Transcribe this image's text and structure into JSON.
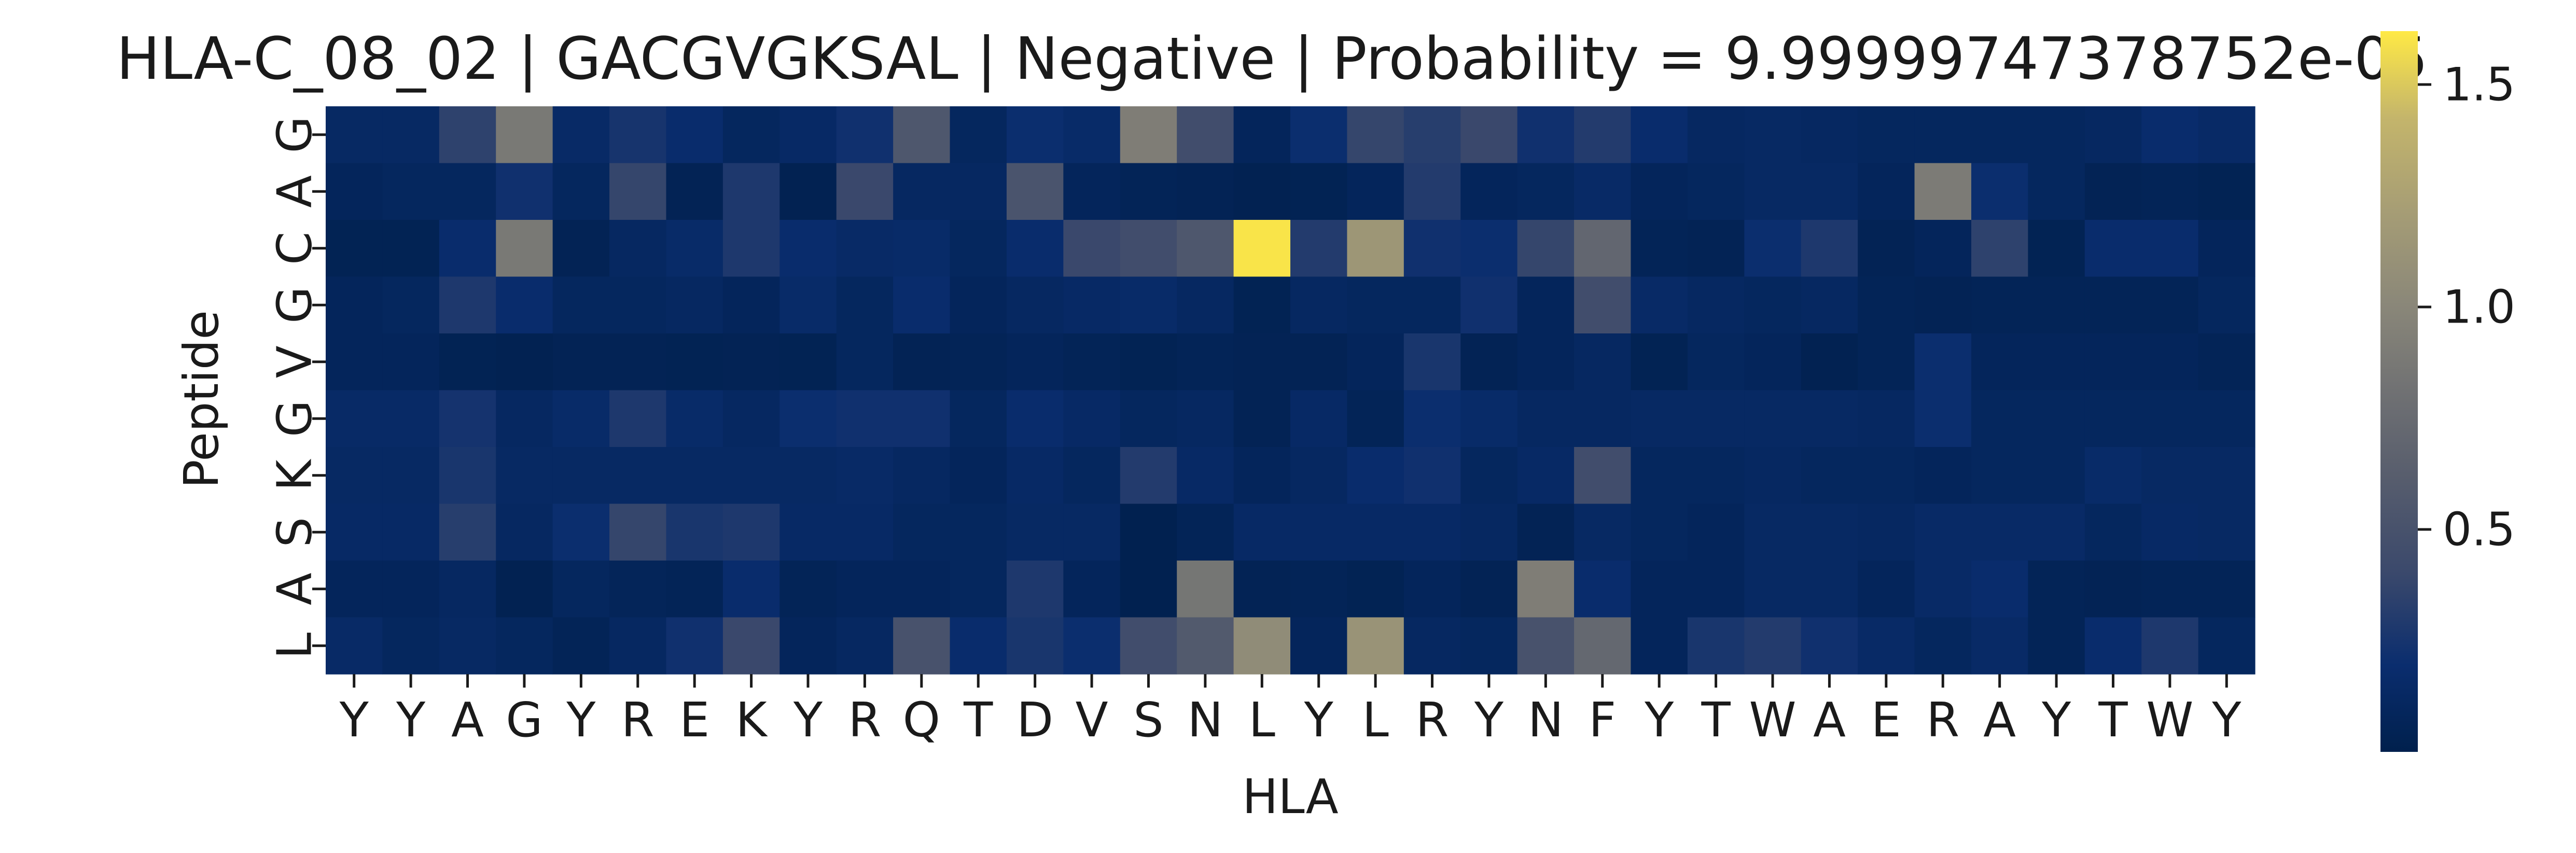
{
  "chart_data": {
    "type": "heatmap",
    "title": "HLA-C_08_02 | GACGVGKSAL | Negative | Probability = 9.99999747378752e-05",
    "xlabel": "HLA",
    "ylabel": "Peptide",
    "x_categories": [
      "Y",
      "Y",
      "A",
      "G",
      "Y",
      "R",
      "E",
      "K",
      "Y",
      "R",
      "Q",
      "T",
      "D",
      "V",
      "S",
      "N",
      "L",
      "Y",
      "L",
      "R",
      "Y",
      "N",
      "F",
      "Y",
      "T",
      "W",
      "A",
      "E",
      "R",
      "A",
      "Y",
      "T",
      "W",
      "Y"
    ],
    "y_categories": [
      "G",
      "A",
      "C",
      "G",
      "V",
      "G",
      "K",
      "S",
      "A",
      "L"
    ],
    "colorbar": {
      "colormap": "cividis",
      "vmin": 0.0,
      "vmax": 1.62,
      "ticks": [
        0.5,
        1.0,
        1.5
      ],
      "tick_labels": [
        "0.5",
        "1.0",
        "1.5"
      ]
    },
    "values": [
      [
        0.13,
        0.13,
        0.35,
        0.88,
        0.15,
        0.25,
        0.18,
        0.1,
        0.14,
        0.22,
        0.55,
        0.1,
        0.2,
        0.16,
        0.92,
        0.45,
        0.08,
        0.2,
        0.38,
        0.32,
        0.4,
        0.22,
        0.3,
        0.18,
        0.12,
        0.13,
        0.12,
        0.1,
        0.1,
        0.1,
        0.1,
        0.12,
        0.18,
        0.15
      ],
      [
        0.08,
        0.1,
        0.1,
        0.22,
        0.1,
        0.38,
        0.05,
        0.28,
        0.03,
        0.4,
        0.12,
        0.12,
        0.52,
        0.08,
        0.06,
        0.05,
        0.03,
        0.04,
        0.08,
        0.3,
        0.08,
        0.1,
        0.15,
        0.08,
        0.1,
        0.13,
        0.13,
        0.08,
        0.9,
        0.2,
        0.1,
        0.05,
        0.06,
        0.04
      ],
      [
        0.04,
        0.04,
        0.18,
        0.88,
        0.05,
        0.12,
        0.16,
        0.28,
        0.18,
        0.15,
        0.16,
        0.1,
        0.18,
        0.4,
        0.45,
        0.55,
        1.6,
        0.3,
        1.15,
        0.22,
        0.2,
        0.38,
        0.7,
        0.06,
        0.05,
        0.2,
        0.28,
        0.05,
        0.08,
        0.35,
        0.04,
        0.18,
        0.18,
        0.08
      ],
      [
        0.08,
        0.1,
        0.28,
        0.18,
        0.1,
        0.1,
        0.12,
        0.08,
        0.16,
        0.1,
        0.18,
        0.08,
        0.12,
        0.14,
        0.16,
        0.12,
        0.04,
        0.12,
        0.1,
        0.1,
        0.22,
        0.08,
        0.45,
        0.15,
        0.12,
        0.1,
        0.12,
        0.06,
        0.05,
        0.06,
        0.06,
        0.06,
        0.06,
        0.1
      ],
      [
        0.08,
        0.08,
        0.04,
        0.03,
        0.05,
        0.05,
        0.04,
        0.05,
        0.04,
        0.1,
        0.05,
        0.06,
        0.08,
        0.06,
        0.04,
        0.06,
        0.05,
        0.05,
        0.08,
        0.26,
        0.05,
        0.08,
        0.12,
        0.04,
        0.1,
        0.08,
        0.03,
        0.06,
        0.2,
        0.08,
        0.08,
        0.08,
        0.08,
        0.06
      ],
      [
        0.15,
        0.15,
        0.24,
        0.12,
        0.16,
        0.28,
        0.16,
        0.12,
        0.2,
        0.22,
        0.22,
        0.1,
        0.18,
        0.14,
        0.1,
        0.12,
        0.05,
        0.14,
        0.06,
        0.2,
        0.16,
        0.12,
        0.12,
        0.13,
        0.13,
        0.13,
        0.13,
        0.12,
        0.2,
        0.1,
        0.1,
        0.1,
        0.1,
        0.1
      ],
      [
        0.13,
        0.13,
        0.26,
        0.13,
        0.13,
        0.13,
        0.13,
        0.13,
        0.13,
        0.15,
        0.12,
        0.08,
        0.14,
        0.1,
        0.3,
        0.14,
        0.08,
        0.12,
        0.18,
        0.22,
        0.1,
        0.14,
        0.45,
        0.1,
        0.1,
        0.12,
        0.1,
        0.1,
        0.08,
        0.1,
        0.1,
        0.16,
        0.13,
        0.13
      ],
      [
        0.14,
        0.14,
        0.32,
        0.12,
        0.2,
        0.38,
        0.26,
        0.28,
        0.14,
        0.14,
        0.1,
        0.1,
        0.13,
        0.13,
        0.02,
        0.06,
        0.14,
        0.14,
        0.14,
        0.14,
        0.12,
        0.05,
        0.13,
        0.1,
        0.08,
        0.13,
        0.13,
        0.12,
        0.15,
        0.15,
        0.15,
        0.1,
        0.14,
        0.13
      ],
      [
        0.08,
        0.08,
        0.12,
        0.03,
        0.1,
        0.07,
        0.06,
        0.18,
        0.06,
        0.08,
        0.08,
        0.1,
        0.28,
        0.08,
        0.02,
        0.85,
        0.05,
        0.06,
        0.04,
        0.08,
        0.05,
        0.92,
        0.18,
        0.08,
        0.08,
        0.13,
        0.13,
        0.08,
        0.15,
        0.18,
        0.06,
        0.05,
        0.06,
        0.06
      ],
      [
        0.15,
        0.1,
        0.13,
        0.1,
        0.06,
        0.12,
        0.22,
        0.4,
        0.08,
        0.12,
        0.5,
        0.18,
        0.26,
        0.2,
        0.45,
        0.58,
        1.05,
        0.08,
        1.12,
        0.12,
        0.1,
        0.5,
        0.72,
        0.08,
        0.26,
        0.3,
        0.22,
        0.15,
        0.1,
        0.15,
        0.06,
        0.18,
        0.28,
        0.1
      ]
    ]
  }
}
